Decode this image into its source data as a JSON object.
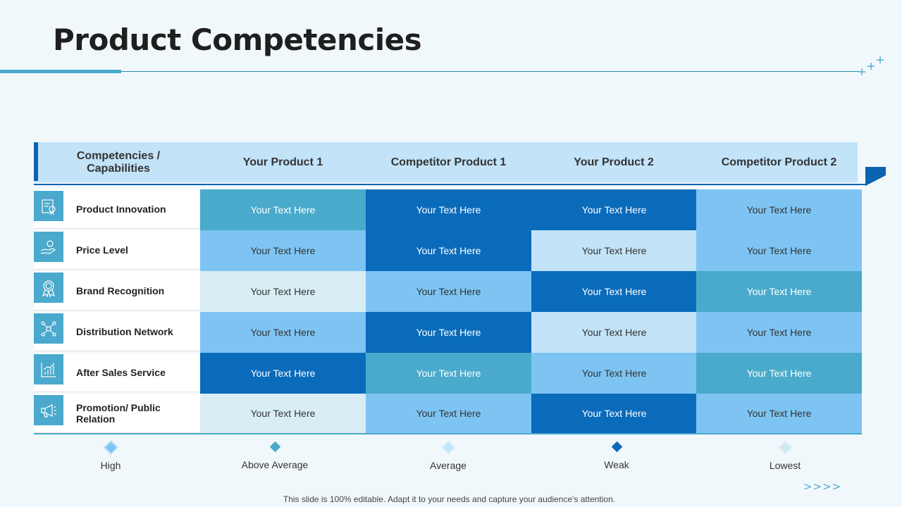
{
  "title": "Product Competencies",
  "header": {
    "col0": "Competencies / Capabilities",
    "col1": "Your Product 1",
    "col2": "Competitor Product 1",
    "col3": "Your Product 2",
    "col4": "Competitor Product 2"
  },
  "rows": [
    {
      "label": "Product Innovation",
      "icon": "patent-icon",
      "cells": [
        {
          "text": "Your Text Here",
          "level": "Above Average"
        },
        {
          "text": "Your Text Here",
          "level": "Weak"
        },
        {
          "text": "Your Text Here",
          "level": "Weak"
        },
        {
          "text": "Your Text Here",
          "level": "High"
        }
      ]
    },
    {
      "label": "Price Level",
      "icon": "price-hand-icon",
      "cells": [
        {
          "text": "Your Text Here",
          "level": "High"
        },
        {
          "text": "Your Text Here",
          "level": "Weak"
        },
        {
          "text": "Your Text Here",
          "level": "Average"
        },
        {
          "text": "Your Text Here",
          "level": "High"
        }
      ]
    },
    {
      "label": "Brand Recognition",
      "icon": "award-ribbon-icon",
      "cells": [
        {
          "text": "Your Text Here",
          "level": "Lowest"
        },
        {
          "text": "Your Text Here",
          "level": "High"
        },
        {
          "text": "Your Text Here",
          "level": "Weak"
        },
        {
          "text": "Your Text Here",
          "level": "Above Average"
        }
      ]
    },
    {
      "label": "Distribution Network",
      "icon": "network-icon",
      "cells": [
        {
          "text": "Your Text Here",
          "level": "High"
        },
        {
          "text": "Your Text Here",
          "level": "Weak"
        },
        {
          "text": "Your Text Here",
          "level": "Average"
        },
        {
          "text": "Your Text Here",
          "level": "High"
        }
      ]
    },
    {
      "label": "After Sales Service",
      "icon": "growth-chart-icon",
      "cells": [
        {
          "text": "Your Text Here",
          "level": "Weak"
        },
        {
          "text": "Your Text Here",
          "level": "Above Average"
        },
        {
          "text": "Your Text Here",
          "level": "High"
        },
        {
          "text": "Your Text Here",
          "level": "Above Average"
        }
      ]
    },
    {
      "label": "Promotion/ Public Relation",
      "icon": "megaphone-icon",
      "cells": [
        {
          "text": "Your Text Here",
          "level": "Lowest"
        },
        {
          "text": "Your Text Here",
          "level": "High"
        },
        {
          "text": "Your Text Here",
          "level": "Weak"
        },
        {
          "text": "Your Text Here",
          "level": "High"
        }
      ]
    }
  ],
  "legend": [
    {
      "label": "High",
      "color": "#7dc4f3"
    },
    {
      "label": "Above Average",
      "color": "#4aaacb"
    },
    {
      "label": "Average",
      "color": "#c2e3f8"
    },
    {
      "label": "Weak",
      "color": "#0a6bbb"
    },
    {
      "label": "Lowest",
      "color": "#d9edf5"
    }
  ],
  "nav_arrows": ">>>>",
  "footer": "This slide is 100% editable. Adapt it to your needs and capture your audience's attention."
}
